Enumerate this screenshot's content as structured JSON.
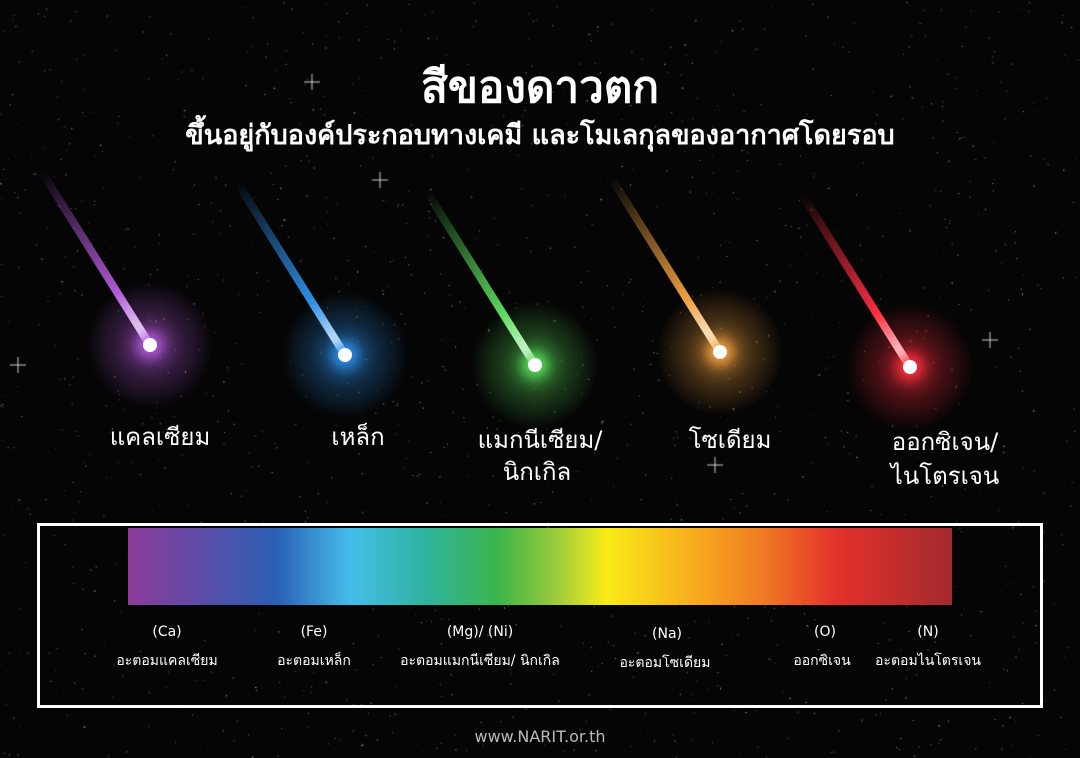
{
  "title": "สีของดาวตก",
  "subtitle": "ขึ้นอยู่กับองค์ประกอบทางเคมี และโมเลกุลของอากาศโดยรอบ",
  "meteors": [
    {
      "label": "แคลเซียม",
      "color": "#b05ad8"
    },
    {
      "label": "เหล็ก",
      "color": "#2f8fe8"
    },
    {
      "label": "แมกนีเซียม/",
      "label2": "นิกเกิล",
      "color": "#5ad85a"
    },
    {
      "label": "โซเดียม",
      "color": "#f0a040"
    },
    {
      "label": "ออกซิเจน/",
      "label2": "ไนโตรเจน",
      "color": "#ff3040"
    }
  ],
  "spectrum": {
    "colors": [
      "#8e3a9a",
      "#2a5fb4",
      "#45bdea",
      "#3cb54a",
      "#f8ec16",
      "#f7b01d",
      "#e3312b",
      "#a32a2e"
    ],
    "elements": [
      {
        "symbol": "(Ca)",
        "name": "อะตอมแคลเซียม"
      },
      {
        "symbol": "(Fe)",
        "name": "อะตอมเหล็ก"
      },
      {
        "symbol": "(Mg)/ (Ni)",
        "name": "อะตอมแมกนีเซียม/ นิกเกิล"
      },
      {
        "symbol": "(Na)",
        "name": "อะตอมโซเดียม"
      },
      {
        "symbol": "(O)",
        "name": "ออกซิเจน"
      },
      {
        "symbol": "(N)",
        "name": "อะตอมไนโตรเจน"
      }
    ]
  },
  "website": "www.NARIT.or.th"
}
